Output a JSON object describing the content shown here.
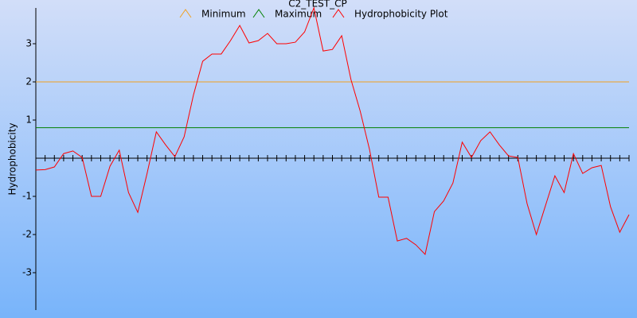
{
  "chart_data": {
    "type": "line",
    "title": "C2_TEST_CP",
    "y_label": "Hydrophobicity",
    "ylim": [
      -4,
      4
    ],
    "yticks": [
      -3,
      -2,
      -1,
      1,
      2,
      3
    ],
    "series": [
      {
        "name": "Minimum",
        "color": "#f0a020",
        "value": 2
      },
      {
        "name": "Maximum",
        "color": "#008000",
        "value": 0.8
      },
      {
        "name": "Hydrophobicity Plot",
        "color": "#ff0000",
        "values": [
          -0.31,
          -0.3,
          -0.23,
          0.12,
          0.19,
          0.02,
          -1.0,
          -1.0,
          -0.21,
          0.21,
          -0.9,
          -1.42,
          -0.4,
          0.69,
          0.35,
          0.04,
          0.56,
          1.65,
          2.54,
          2.73,
          2.73,
          3.08,
          3.48,
          3.02,
          3.08,
          3.27,
          3.0,
          3.0,
          3.04,
          3.31,
          3.94,
          2.81,
          2.85,
          3.21,
          2.06,
          1.23,
          0.23,
          -1.02,
          -1.02,
          -2.17,
          -2.1,
          -2.27,
          -2.52,
          -1.4,
          -1.12,
          -0.65,
          0.42,
          0.02,
          0.46,
          0.69,
          0.35,
          0.06,
          0.02,
          -1.19,
          -2.0,
          -1.23,
          -0.46,
          -0.9,
          0.12,
          -0.4,
          -0.25,
          -0.19,
          -1.27,
          -1.94,
          -1.48
        ]
      }
    ]
  }
}
